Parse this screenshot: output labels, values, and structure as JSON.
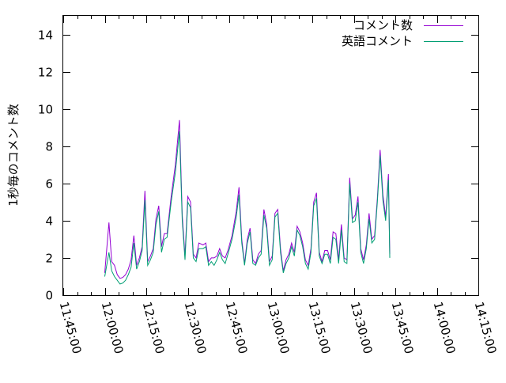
{
  "chart_data": {
    "type": "line",
    "title": "",
    "xlabel": "",
    "ylabel": "1秒毎のコメント数",
    "xlim": [
      "11:45:00",
      "14:15:00"
    ],
    "ylim": [
      0,
      15
    ],
    "x_ticks": [
      "11:45:00",
      "12:00:00",
      "12:15:00",
      "12:30:00",
      "12:45:00",
      "13:00:00",
      "13:15:00",
      "13:30:00",
      "13:45:00",
      "14:00:00",
      "14:15:00"
    ],
    "y_ticks": [
      "0",
      "2",
      "4",
      "6",
      "8",
      "10",
      "12",
      "14"
    ],
    "grid": false,
    "legend_position": "top-right",
    "series": [
      {
        "name": "コメント数",
        "color": "#9400d3",
        "points": [
          [
            "12:00:00",
            1.2
          ],
          [
            "12:01:30",
            3.9
          ],
          [
            "12:02:30",
            1.8
          ],
          [
            "12:03:30",
            1.6
          ],
          [
            "12:04:30",
            1.1
          ],
          [
            "12:05:30",
            0.9
          ],
          [
            "12:06:30",
            0.95
          ],
          [
            "12:07:30",
            1.1
          ],
          [
            "12:08:30",
            1.4
          ],
          [
            "12:09:30",
            1.9
          ],
          [
            "12:10:30",
            3.2
          ],
          [
            "12:11:30",
            1.6
          ],
          [
            "12:12:30",
            2.0
          ],
          [
            "12:13:30",
            2.6
          ],
          [
            "12:14:30",
            5.6
          ],
          [
            "12:15:30",
            1.8
          ],
          [
            "12:16:30",
            2.1
          ],
          [
            "12:17:30",
            2.5
          ],
          [
            "12:18:30",
            4.1
          ],
          [
            "12:19:30",
            4.8
          ],
          [
            "12:20:30",
            2.6
          ],
          [
            "12:21:30",
            3.3
          ],
          [
            "12:22:30",
            3.3
          ],
          [
            "12:24:00",
            5.3
          ],
          [
            "12:25:30",
            7.0
          ],
          [
            "12:27:00",
            9.4
          ],
          [
            "12:28:00",
            4.3
          ],
          [
            "12:29:00",
            2.1
          ],
          [
            "12:30:00",
            5.3
          ],
          [
            "12:31:00",
            5.0
          ],
          [
            "12:32:00",
            2.2
          ],
          [
            "12:33:00",
            2.0
          ],
          [
            "12:34:00",
            2.8
          ],
          [
            "12:35:30",
            2.7
          ],
          [
            "12:36:30",
            2.8
          ],
          [
            "12:37:30",
            1.8
          ],
          [
            "12:38:30",
            2.0
          ],
          [
            "12:39:30",
            2.0
          ],
          [
            "12:40:30",
            2.1
          ],
          [
            "12:41:30",
            2.5
          ],
          [
            "12:42:30",
            2.1
          ],
          [
            "12:43:30",
            2.0
          ],
          [
            "12:44:30",
            2.4
          ],
          [
            "12:46:00",
            3.2
          ],
          [
            "12:47:30",
            4.5
          ],
          [
            "12:48:30",
            5.8
          ],
          [
            "12:49:30",
            3.0
          ],
          [
            "12:50:30",
            1.7
          ],
          [
            "12:51:30",
            3.0
          ],
          [
            "12:52:30",
            3.6
          ],
          [
            "12:53:30",
            1.9
          ],
          [
            "12:54:30",
            1.7
          ],
          [
            "12:55:30",
            2.2
          ],
          [
            "12:56:30",
            2.4
          ],
          [
            "12:57:30",
            4.6
          ],
          [
            "12:58:30",
            3.8
          ],
          [
            "12:59:30",
            1.8
          ],
          [
            "13:00:30",
            2.1
          ],
          [
            "13:01:30",
            4.4
          ],
          [
            "13:02:30",
            4.6
          ],
          [
            "13:03:30",
            2.5
          ],
          [
            "13:04:30",
            1.3
          ],
          [
            "13:05:30",
            1.9
          ],
          [
            "13:06:30",
            2.2
          ],
          [
            "13:07:30",
            2.8
          ],
          [
            "13:08:30",
            2.3
          ],
          [
            "13:09:30",
            3.7
          ],
          [
            "13:10:30",
            3.4
          ],
          [
            "13:11:30",
            2.8
          ],
          [
            "13:12:30",
            1.9
          ],
          [
            "13:13:30",
            1.6
          ],
          [
            "13:14:30",
            2.5
          ],
          [
            "13:15:30",
            5.0
          ],
          [
            "13:16:30",
            5.5
          ],
          [
            "13:17:30",
            2.3
          ],
          [
            "13:18:30",
            1.8
          ],
          [
            "13:19:30",
            2.4
          ],
          [
            "13:20:30",
            2.4
          ],
          [
            "13:21:30",
            1.9
          ],
          [
            "13:22:30",
            3.4
          ],
          [
            "13:23:30",
            3.3
          ],
          [
            "13:24:30",
            1.9
          ],
          [
            "13:25:30",
            3.8
          ],
          [
            "13:26:30",
            2.0
          ],
          [
            "13:27:30",
            1.9
          ],
          [
            "13:28:30",
            6.3
          ],
          [
            "13:29:30",
            4.1
          ],
          [
            "13:30:30",
            4.3
          ],
          [
            "13:31:30",
            5.3
          ],
          [
            "13:32:30",
            2.5
          ],
          [
            "13:33:30",
            1.9
          ],
          [
            "13:34:30",
            2.7
          ],
          [
            "13:35:30",
            4.4
          ],
          [
            "13:36:30",
            3.0
          ],
          [
            "13:37:30",
            3.2
          ],
          [
            "13:38:30",
            5.2
          ],
          [
            "13:39:30",
            7.8
          ],
          [
            "13:40:30",
            5.4
          ],
          [
            "13:41:30",
            4.2
          ],
          [
            "13:42:30",
            6.5
          ],
          [
            "13:43:00",
            2.2
          ]
        ]
      },
      {
        "name": "英語コメント",
        "color": "#009e73",
        "points": [
          [
            "12:00:00",
            1.0
          ],
          [
            "12:01:30",
            2.3
          ],
          [
            "12:02:30",
            1.3
          ],
          [
            "12:03:30",
            1.0
          ],
          [
            "12:04:30",
            0.8
          ],
          [
            "12:05:30",
            0.6
          ],
          [
            "12:06:30",
            0.65
          ],
          [
            "12:07:30",
            0.8
          ],
          [
            "12:08:30",
            1.1
          ],
          [
            "12:09:30",
            1.5
          ],
          [
            "12:10:30",
            2.8
          ],
          [
            "12:11:30",
            1.4
          ],
          [
            "12:12:30",
            1.8
          ],
          [
            "12:13:30",
            2.4
          ],
          [
            "12:14:30",
            5.1
          ],
          [
            "12:15:30",
            1.6
          ],
          [
            "12:16:30",
            1.9
          ],
          [
            "12:17:30",
            2.3
          ],
          [
            "12:18:30",
            3.8
          ],
          [
            "12:19:30",
            4.5
          ],
          [
            "12:20:30",
            2.3
          ],
          [
            "12:21:30",
            3.0
          ],
          [
            "12:22:30",
            3.1
          ],
          [
            "12:24:00",
            5.0
          ],
          [
            "12:25:30",
            6.6
          ],
          [
            "12:27:00",
            8.8
          ],
          [
            "12:28:00",
            4.0
          ],
          [
            "12:29:00",
            1.9
          ],
          [
            "12:30:00",
            5.0
          ],
          [
            "12:31:00",
            4.7
          ],
          [
            "12:32:00",
            2.0
          ],
          [
            "12:33:00",
            1.8
          ],
          [
            "12:34:00",
            2.5
          ],
          [
            "12:35:30",
            2.5
          ],
          [
            "12:36:30",
            2.6
          ],
          [
            "12:37:30",
            1.6
          ],
          [
            "12:38:30",
            1.8
          ],
          [
            "12:39:30",
            1.6
          ],
          [
            "12:40:30",
            1.9
          ],
          [
            "12:41:30",
            2.3
          ],
          [
            "12:42:30",
            1.9
          ],
          [
            "12:43:30",
            1.7
          ],
          [
            "12:44:30",
            2.2
          ],
          [
            "12:46:00",
            3.0
          ],
          [
            "12:47:30",
            4.2
          ],
          [
            "12:48:30",
            5.4
          ],
          [
            "12:49:30",
            2.8
          ],
          [
            "12:50:30",
            1.6
          ],
          [
            "12:51:30",
            2.8
          ],
          [
            "12:52:30",
            3.4
          ],
          [
            "12:53:30",
            1.7
          ],
          [
            "12:54:30",
            1.6
          ],
          [
            "12:55:30",
            2.0
          ],
          [
            "12:56:30",
            2.2
          ],
          [
            "12:57:30",
            4.3
          ],
          [
            "12:58:30",
            3.6
          ],
          [
            "12:59:30",
            1.6
          ],
          [
            "13:00:30",
            1.9
          ],
          [
            "13:01:30",
            4.2
          ],
          [
            "13:02:30",
            4.4
          ],
          [
            "13:03:30",
            2.3
          ],
          [
            "13:04:30",
            1.2
          ],
          [
            "13:05:30",
            1.7
          ],
          [
            "13:06:30",
            2.0
          ],
          [
            "13:07:30",
            2.6
          ],
          [
            "13:08:30",
            2.1
          ],
          [
            "13:09:30",
            3.5
          ],
          [
            "13:10:30",
            3.2
          ],
          [
            "13:11:30",
            2.6
          ],
          [
            "13:12:30",
            1.7
          ],
          [
            "13:13:30",
            1.4
          ],
          [
            "13:14:30",
            2.3
          ],
          [
            "13:15:30",
            4.8
          ],
          [
            "13:16:30",
            5.2
          ],
          [
            "13:17:30",
            2.1
          ],
          [
            "13:18:30",
            1.7
          ],
          [
            "13:19:30",
            2.2
          ],
          [
            "13:20:30",
            2.2
          ],
          [
            "13:21:30",
            1.7
          ],
          [
            "13:22:30",
            3.1
          ],
          [
            "13:23:30",
            3.0
          ],
          [
            "13:24:30",
            1.7
          ],
          [
            "13:25:30",
            3.5
          ],
          [
            "13:26:30",
            1.8
          ],
          [
            "13:27:30",
            1.7
          ],
          [
            "13:28:30",
            6.0
          ],
          [
            "13:29:30",
            3.9
          ],
          [
            "13:30:30",
            4.0
          ],
          [
            "13:31:30",
            5.0
          ],
          [
            "13:32:30",
            2.3
          ],
          [
            "13:33:30",
            1.7
          ],
          [
            "13:34:30",
            2.5
          ],
          [
            "13:35:30",
            4.1
          ],
          [
            "13:36:30",
            2.8
          ],
          [
            "13:37:30",
            3.0
          ],
          [
            "13:38:30",
            5.0
          ],
          [
            "13:39:30",
            7.5
          ],
          [
            "13:40:30",
            5.1
          ],
          [
            "13:41:30",
            4.0
          ],
          [
            "13:42:30",
            6.2
          ],
          [
            "13:43:00",
            2.0
          ]
        ]
      }
    ]
  }
}
